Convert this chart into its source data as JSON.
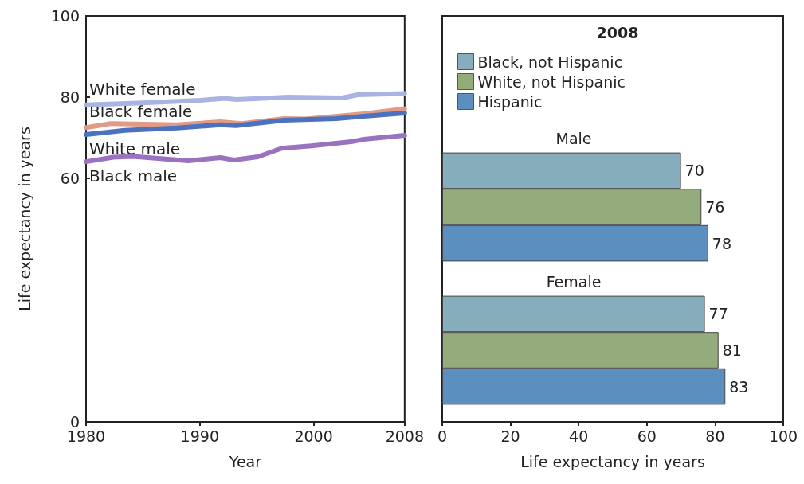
{
  "chart_data": [
    {
      "type": "line",
      "xlabel": "Year",
      "ylabel": "Life expectancy in years",
      "xlim": [
        1980,
        2008
      ],
      "xticks": [
        1980,
        1990,
        2000,
        2008
      ],
      "ylim": [
        0,
        100
      ],
      "yticks": [
        0,
        60,
        80,
        100
      ],
      "grid": false,
      "legend": false,
      "line_style": "solid",
      "series": [
        {
          "name": "White female",
          "color": "#a9b4e3",
          "x": [
            1980,
            1985,
            1990,
            1992.2,
            1993.2,
            1997.8,
            2002.5,
            2003.9,
            2008
          ],
          "values": [
            78.1,
            78.6,
            79.2,
            79.7,
            79.4,
            80,
            79.8,
            80.6,
            80.9
          ]
        },
        {
          "name": "Black female",
          "color": "#e09a85",
          "x": [
            1980,
            1982.2,
            1988,
            1991.8,
            1993.7,
            1997.4,
            1999.3,
            2004.4,
            2008
          ],
          "values": [
            72.5,
            73.5,
            73.2,
            73.9,
            73.5,
            74.7,
            74.6,
            75.9,
            77.1
          ]
        },
        {
          "name": "White male",
          "color": "#4a72c0",
          "x": [
            1980,
            1983.4,
            1988,
            1991.8,
            1993.2,
            1997.4,
            2002,
            2004.4,
            2008
          ],
          "values": [
            70.8,
            71.8,
            72.4,
            73.2,
            73,
            74.3,
            74.7,
            75.3,
            76.1
          ]
        },
        {
          "name": "Black male",
          "color": "#9b72c0",
          "x": [
            1980,
            1982.4,
            1984.1,
            1989,
            1991.8,
            1993,
            1995.1,
            1997.2,
            1999.8,
            2003.3,
            2004.4,
            2008
          ],
          "values": [
            64.1,
            65.2,
            65.4,
            64.3,
            65.1,
            64.5,
            65.3,
            67.4,
            68,
            69,
            69.6,
            70.6
          ]
        }
      ]
    },
    {
      "type": "bar",
      "orientation": "horizontal",
      "title": "2008",
      "xlabel": "Life expectancy in years",
      "categories": [
        "Male",
        "Female"
      ],
      "xlim": [
        0,
        100
      ],
      "xticks": [
        0,
        20,
        40,
        60,
        80,
        100
      ],
      "grid": false,
      "legend": "top left",
      "data_labels": true,
      "series": [
        {
          "name": "Black, not Hispanic",
          "color": "#86adbb",
          "values": [
            70,
            77
          ]
        },
        {
          "name": "White, not Hispanic",
          "color": "#94ac7c",
          "values": [
            76,
            81
          ]
        },
        {
          "name": "Hispanic",
          "color": "#5b8fbf",
          "values": [
            78,
            83
          ]
        }
      ]
    }
  ]
}
